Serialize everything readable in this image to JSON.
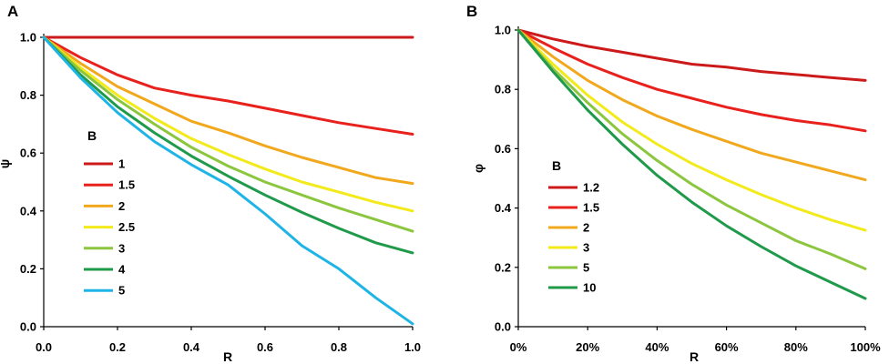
{
  "chart_data": [
    {
      "type": "line",
      "panel_label": "A",
      "xlabel": "R",
      "ylabel": "ψ",
      "xlim": [
        0,
        1
      ],
      "ylim": [
        0,
        1
      ],
      "xticks": [
        "0.0",
        "0.2",
        "0.4",
        "0.6",
        "0.8",
        "1.0"
      ],
      "yticks": [
        "0.0",
        "0.2",
        "0.4",
        "0.6",
        "0.8",
        "1.0"
      ],
      "legend_title": "B",
      "legend_position": "left-middle",
      "series": [
        {
          "name": "1",
          "color": "#cc1a1a",
          "x": [
            0,
            0.2,
            0.4,
            0.6,
            0.8,
            1.0
          ],
          "y": [
            1.0,
            1.0,
            1.0,
            1.0,
            1.0,
            1.0
          ]
        },
        {
          "name": "1.5",
          "color": "#e8211c",
          "x": [
            0,
            0.1,
            0.2,
            0.3,
            0.4,
            0.5,
            0.6,
            0.7,
            0.8,
            0.9,
            1.0
          ],
          "y": [
            1.0,
            0.93,
            0.87,
            0.825,
            0.8,
            0.78,
            0.755,
            0.73,
            0.705,
            0.685,
            0.665
          ]
        },
        {
          "name": "2",
          "color": "#f2a81d",
          "x": [
            0,
            0.1,
            0.2,
            0.3,
            0.4,
            0.5,
            0.6,
            0.7,
            0.8,
            0.9,
            1.0
          ],
          "y": [
            1.0,
            0.91,
            0.83,
            0.77,
            0.71,
            0.67,
            0.625,
            0.585,
            0.55,
            0.515,
            0.495
          ]
        },
        {
          "name": "2.5",
          "color": "#f2ea1a",
          "x": [
            0,
            0.1,
            0.2,
            0.3,
            0.4,
            0.5,
            0.6,
            0.7,
            0.8,
            0.9,
            1.0
          ],
          "y": [
            1.0,
            0.895,
            0.8,
            0.72,
            0.65,
            0.595,
            0.545,
            0.5,
            0.465,
            0.43,
            0.4
          ]
        },
        {
          "name": "3",
          "color": "#8cc63f",
          "x": [
            0,
            0.1,
            0.2,
            0.3,
            0.4,
            0.5,
            0.6,
            0.7,
            0.8,
            0.9,
            1.0
          ],
          "y": [
            1.0,
            0.885,
            0.785,
            0.7,
            0.62,
            0.555,
            0.5,
            0.455,
            0.41,
            0.37,
            0.33
          ]
        },
        {
          "name": "4",
          "color": "#1f9a4a",
          "x": [
            0,
            0.1,
            0.2,
            0.3,
            0.4,
            0.5,
            0.6,
            0.7,
            0.8,
            0.9,
            1.0
          ],
          "y": [
            1.0,
            0.87,
            0.76,
            0.67,
            0.59,
            0.52,
            0.455,
            0.395,
            0.34,
            0.29,
            0.255
          ]
        },
        {
          "name": "5",
          "color": "#1eb4e6",
          "x": [
            0,
            0.1,
            0.2,
            0.3,
            0.4,
            0.5,
            0.6,
            0.7,
            0.8,
            0.9,
            1.0
          ],
          "y": [
            1.0,
            0.86,
            0.74,
            0.64,
            0.56,
            0.49,
            0.39,
            0.28,
            0.2,
            0.1,
            0.01
          ]
        }
      ]
    },
    {
      "type": "line",
      "panel_label": "B",
      "xlabel": "R",
      "ylabel": "φ",
      "xlim": [
        0,
        100
      ],
      "ylim": [
        0,
        1
      ],
      "xticks": [
        "0%",
        "20%",
        "40%",
        "60%",
        "80%",
        "100%"
      ],
      "yticks": [
        "0.0",
        "0.2",
        "0.4",
        "0.6",
        "0.8",
        "1.0"
      ],
      "legend_title": "B",
      "legend_position": "left-middle",
      "series": [
        {
          "name": "1.2",
          "color": "#cc1a1a",
          "x": [
            0,
            10,
            20,
            30,
            40,
            50,
            60,
            70,
            80,
            90,
            100
          ],
          "y": [
            1.0,
            0.97,
            0.945,
            0.925,
            0.905,
            0.885,
            0.875,
            0.86,
            0.85,
            0.84,
            0.83
          ]
        },
        {
          "name": "1.5",
          "color": "#e8211c",
          "x": [
            0,
            10,
            20,
            30,
            40,
            50,
            60,
            70,
            80,
            90,
            100
          ],
          "y": [
            1.0,
            0.94,
            0.885,
            0.84,
            0.8,
            0.77,
            0.74,
            0.715,
            0.695,
            0.68,
            0.66
          ]
        },
        {
          "name": "2",
          "color": "#f2a81d",
          "x": [
            0,
            10,
            20,
            30,
            40,
            50,
            60,
            70,
            80,
            90,
            100
          ],
          "y": [
            1.0,
            0.91,
            0.83,
            0.765,
            0.71,
            0.665,
            0.625,
            0.585,
            0.555,
            0.525,
            0.495
          ]
        },
        {
          "name": "3",
          "color": "#f2ea1a",
          "x": [
            0,
            10,
            20,
            30,
            40,
            50,
            60,
            70,
            80,
            90,
            100
          ],
          "y": [
            1.0,
            0.885,
            0.78,
            0.69,
            0.615,
            0.55,
            0.495,
            0.445,
            0.4,
            0.36,
            0.325
          ]
        },
        {
          "name": "5",
          "color": "#8cc63f",
          "x": [
            0,
            10,
            20,
            30,
            40,
            50,
            60,
            70,
            80,
            90,
            100
          ],
          "y": [
            1.0,
            0.87,
            0.755,
            0.65,
            0.56,
            0.48,
            0.41,
            0.35,
            0.29,
            0.245,
            0.195
          ]
        },
        {
          "name": "10",
          "color": "#1f9a4a",
          "x": [
            0,
            10,
            20,
            30,
            40,
            50,
            60,
            70,
            80,
            90,
            100
          ],
          "y": [
            1.0,
            0.86,
            0.73,
            0.615,
            0.51,
            0.42,
            0.34,
            0.27,
            0.205,
            0.15,
            0.095
          ]
        }
      ]
    }
  ]
}
